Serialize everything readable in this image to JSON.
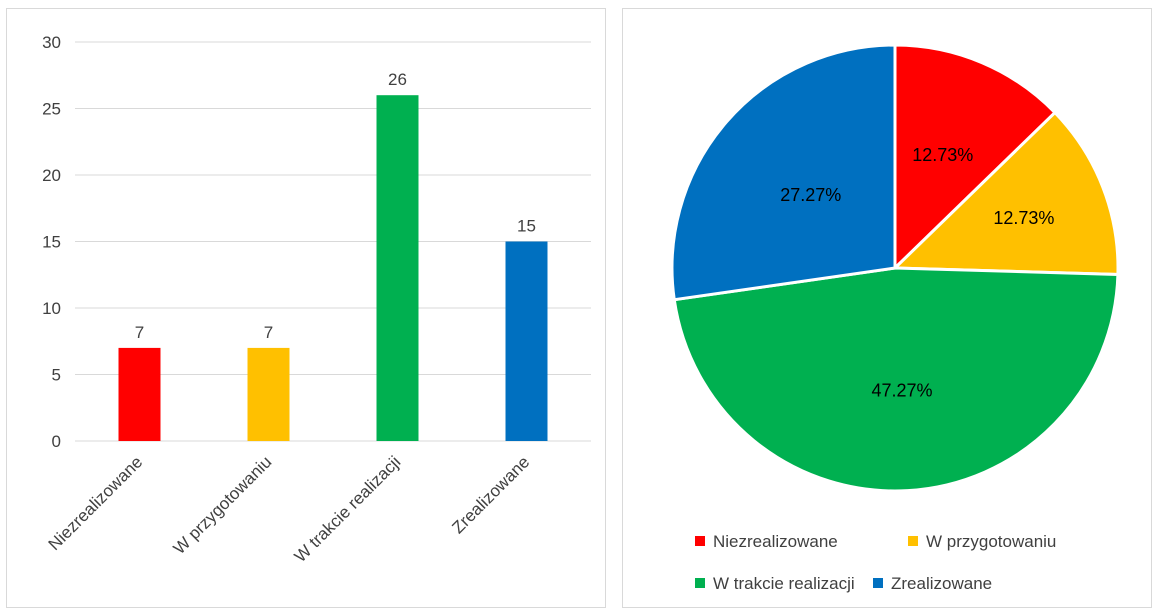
{
  "chart_data": [
    {
      "type": "bar",
      "categories": [
        "Niezrealizowane",
        "W przygotowaniu",
        "W trakcie realizacji",
        "Zrealizowane"
      ],
      "values": [
        7,
        7,
        26,
        15
      ],
      "data_labels": [
        "7",
        "7",
        "26",
        "15"
      ],
      "colors": [
        "#ff0000",
        "#ffc000",
        "#00b050",
        "#0070c0"
      ],
      "ylim": [
        0,
        30
      ],
      "yticks": [
        0,
        5,
        10,
        15,
        20,
        25,
        30
      ],
      "ytick_labels": [
        "0",
        "5",
        "10",
        "15",
        "20",
        "25",
        "30"
      ],
      "grid": true,
      "title": "",
      "xlabel": "",
      "ylabel": ""
    },
    {
      "type": "pie",
      "categories": [
        "Niezrealizowane",
        "W przygotowaniu",
        "W trakcie realizacji",
        "Zrealizowane"
      ],
      "values": [
        12.73,
        12.73,
        47.27,
        27.27
      ],
      "data_labels": [
        "12.73%",
        "12.73%",
        "47.27%",
        "27.27%"
      ],
      "colors": [
        "#ff0000",
        "#ffc000",
        "#00b050",
        "#0070c0"
      ],
      "legend": [
        "Niezrealizowane",
        "W przygotowaniu",
        "W trakcie realizacji",
        "Zrealizowane"
      ],
      "legend_position": "bottom",
      "title": ""
    }
  ]
}
